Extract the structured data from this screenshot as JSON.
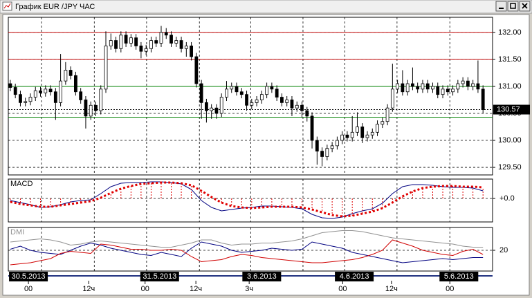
{
  "window": {
    "title": "График EUR /JPY ЧАС"
  },
  "chart_data": [
    {
      "type": "candlestick",
      "ohlc": [
        [
          131.05,
          131.12,
          130.91,
          130.98
        ],
        [
          130.98,
          131.05,
          130.78,
          130.85
        ],
        [
          130.85,
          130.92,
          130.63,
          130.7
        ],
        [
          130.7,
          130.79,
          130.63,
          130.72
        ],
        [
          130.72,
          130.87,
          130.65,
          130.8
        ],
        [
          130.8,
          130.99,
          130.73,
          130.92
        ],
        [
          130.92,
          130.99,
          130.81,
          130.88
        ],
        [
          130.88,
          131.02,
          130.81,
          130.95
        ],
        [
          130.95,
          131.02,
          130.83,
          130.9
        ],
        [
          130.9,
          130.97,
          130.38,
          130.7
        ],
        [
          130.7,
          131.6,
          130.63,
          131.1
        ],
        [
          131.1,
          131.45,
          131.03,
          131.3
        ],
        [
          131.3,
          131.37,
          131.13,
          131.2
        ],
        [
          131.2,
          131.27,
          130.83,
          130.9
        ],
        [
          130.9,
          130.97,
          130.68,
          130.75
        ],
        [
          130.75,
          130.82,
          130.22,
          130.45
        ],
        [
          130.45,
          130.72,
          130.38,
          130.65
        ],
        [
          130.65,
          130.72,
          130.45,
          130.55
        ],
        [
          130.55,
          131.02,
          130.48,
          130.95
        ],
        [
          130.95,
          132.02,
          130.88,
          131.75
        ],
        [
          131.75,
          131.98,
          131.68,
          131.85
        ],
        [
          131.85,
          131.92,
          131.63,
          131.7
        ],
        [
          131.7,
          132.02,
          131.63,
          131.95
        ],
        [
          131.95,
          132.02,
          131.73,
          131.8
        ],
        [
          131.8,
          131.97,
          131.73,
          131.9
        ],
        [
          131.9,
          131.97,
          131.68,
          131.75
        ],
        [
          131.75,
          131.82,
          131.52,
          131.65
        ],
        [
          131.65,
          131.77,
          131.58,
          131.7
        ],
        [
          131.7,
          131.92,
          131.63,
          131.85
        ],
        [
          131.85,
          131.92,
          131.73,
          131.8
        ],
        [
          131.8,
          132.12,
          131.73,
          132.0
        ],
        [
          132.0,
          132.08,
          131.88,
          131.95
        ],
        [
          131.95,
          132.02,
          131.73,
          131.8
        ],
        [
          131.8,
          131.92,
          131.73,
          131.85
        ],
        [
          131.85,
          131.92,
          131.63,
          131.7
        ],
        [
          131.7,
          131.82,
          131.55,
          131.75
        ],
        [
          131.75,
          131.82,
          131.48,
          131.55
        ],
        [
          131.55,
          131.62,
          130.98,
          131.05
        ],
        [
          131.05,
          131.12,
          130.4,
          130.7
        ],
        [
          130.7,
          130.77,
          130.33,
          130.55
        ],
        [
          130.55,
          130.67,
          130.4,
          130.6
        ],
        [
          130.6,
          130.67,
          130.4,
          130.5
        ],
        [
          130.5,
          130.87,
          130.43,
          130.8
        ],
        [
          130.8,
          131.1,
          130.73,
          130.95
        ],
        [
          130.95,
          131.07,
          130.88,
          131.0
        ],
        [
          131.0,
          131.07,
          130.83,
          130.9
        ],
        [
          130.9,
          130.97,
          130.78,
          130.85
        ],
        [
          130.85,
          130.92,
          130.55,
          130.65
        ],
        [
          130.65,
          130.77,
          130.58,
          130.7
        ],
        [
          130.7,
          130.82,
          130.63,
          130.75
        ],
        [
          130.75,
          130.92,
          130.68,
          130.85
        ],
        [
          130.85,
          131.07,
          130.78,
          131.0
        ],
        [
          131.0,
          131.07,
          130.88,
          130.95
        ],
        [
          130.95,
          131.02,
          130.73,
          130.8
        ],
        [
          130.8,
          130.87,
          130.63,
          130.7
        ],
        [
          130.7,
          130.82,
          130.63,
          130.75
        ],
        [
          130.75,
          130.82,
          130.45,
          130.6
        ],
        [
          130.6,
          130.72,
          130.53,
          130.65
        ],
        [
          130.65,
          130.72,
          130.42,
          130.55
        ],
        [
          130.55,
          130.62,
          130.35,
          130.45
        ],
        [
          130.45,
          130.52,
          129.85,
          130.0
        ],
        [
          130.0,
          130.07,
          129.55,
          129.8
        ],
        [
          129.8,
          129.87,
          129.52,
          129.7
        ],
        [
          129.7,
          129.92,
          129.63,
          129.85
        ],
        [
          129.85,
          129.97,
          129.78,
          129.9
        ],
        [
          129.9,
          130.07,
          129.83,
          130.0
        ],
        [
          130.0,
          130.17,
          129.93,
          130.1
        ],
        [
          130.1,
          130.17,
          129.98,
          130.05
        ],
        [
          130.05,
          130.45,
          129.98,
          130.15
        ],
        [
          130.15,
          130.52,
          130.08,
          130.25
        ],
        [
          130.25,
          130.32,
          129.95,
          130.05
        ],
        [
          130.05,
          130.17,
          129.98,
          130.1
        ],
        [
          130.1,
          130.22,
          130.03,
          130.15
        ],
        [
          130.15,
          130.37,
          130.08,
          130.3
        ],
        [
          130.3,
          130.42,
          130.23,
          130.35
        ],
        [
          130.35,
          130.67,
          130.28,
          130.6
        ],
        [
          130.6,
          131.42,
          130.53,
          130.95
        ],
        [
          130.95,
          131.12,
          130.88,
          131.05
        ],
        [
          131.05,
          131.3,
          130.83,
          130.9
        ],
        [
          130.9,
          131.12,
          130.83,
          131.05
        ],
        [
          131.05,
          131.35,
          130.93,
          131.0
        ],
        [
          131.0,
          131.07,
          130.88,
          130.95
        ],
        [
          130.95,
          131.12,
          130.88,
          131.05
        ],
        [
          131.05,
          131.12,
          130.88,
          130.95
        ],
        [
          130.95,
          131.07,
          130.88,
          131.0
        ],
        [
          131.0,
          131.07,
          130.78,
          130.85
        ],
        [
          130.85,
          131.02,
          130.78,
          130.95
        ],
        [
          130.95,
          131.02,
          130.83,
          130.9
        ],
        [
          130.9,
          131.02,
          130.83,
          130.95
        ],
        [
          130.95,
          131.12,
          130.88,
          131.05
        ],
        [
          131.05,
          131.17,
          130.98,
          131.1
        ],
        [
          131.1,
          131.17,
          130.93,
          131.0
        ],
        [
          131.0,
          131.12,
          130.93,
          131.05
        ],
        [
          131.05,
          131.48,
          130.88,
          130.95
        ],
        [
          130.95,
          131.02,
          130.5,
          130.57
        ]
      ],
      "up_color": "#ffffff",
      "down_color": "#000000",
      "xlim": [
        -0.4,
        95.9
      ],
      "ylim": [
        129.36,
        132.28
      ],
      "yticks": [
        {
          "value": 129.5,
          "label": "129.50"
        },
        {
          "value": 130,
          "label": "130.00"
        },
        {
          "value": 130.5,
          "label": "130.50"
        },
        {
          "value": 131,
          "label": "131.00"
        },
        {
          "value": 131.5,
          "label": "131.50"
        },
        {
          "value": 132,
          "label": "132.00"
        }
      ],
      "levels": [
        {
          "value": 132,
          "color": "#c00000"
        },
        {
          "value": 131.5,
          "color": "#c00000"
        },
        {
          "value": 131,
          "color": "#008000"
        },
        {
          "value": 130.43,
          "color": "#008000"
        }
      ],
      "last_price": 130.57,
      "xgrid": [
        6.2,
        16.7,
        27.1,
        37.6,
        47.8,
        58.2,
        66.5,
        76.9,
        87.4
      ],
      "xticks": [
        {
          "value": 3.6,
          "label": "00"
        },
        {
          "value": 15.6,
          "label": "12ч"
        },
        {
          "value": 26.8,
          "label": "00"
        },
        {
          "value": 36.9,
          "label": "12ч"
        },
        {
          "value": 47.5,
          "label": "3ч"
        },
        {
          "value": 66.1,
          "label": "00"
        },
        {
          "value": 75.8,
          "label": "12ч"
        },
        {
          "value": 87.4,
          "label": "00"
        }
      ],
      "date_labels": [
        {
          "value": 3.6,
          "label": "30.5.2013"
        },
        {
          "value": 29.7,
          "label": "31.5.2013"
        },
        {
          "value": 50,
          "label": "3.6.2013"
        },
        {
          "value": 68.4,
          "label": "4.6.2013"
        },
        {
          "value": 89.2,
          "label": "5.6.2013"
        }
      ]
    },
    {
      "type": "line",
      "title": "MACD",
      "x": [
        0,
        2,
        4,
        6,
        8,
        10,
        12,
        14,
        16,
        18,
        20,
        22,
        24,
        26,
        28,
        30,
        32,
        34,
        36,
        38,
        40,
        42,
        44,
        46,
        48,
        50,
        52,
        54,
        56,
        58,
        60,
        62,
        64,
        66,
        68,
        70,
        72,
        74,
        76,
        78,
        80,
        82,
        84,
        86,
        88,
        90,
        92,
        94
      ],
      "series": [
        {
          "color": "#000080",
          "values": [
            -0.03,
            -0.06,
            -0.09,
            -0.13,
            -0.12,
            -0.09,
            -0.05,
            -0.03,
            -0.02,
            0.07,
            0.17,
            0.22,
            0.23,
            0.23,
            0.24,
            0.24,
            0.23,
            0.21,
            0.13,
            -0.03,
            -0.13,
            -0.18,
            -0.16,
            -0.14,
            -0.13,
            -0.11,
            -0.11,
            -0.12,
            -0.13,
            -0.15,
            -0.23,
            -0.28,
            -0.29,
            -0.27,
            -0.22,
            -0.18,
            -0.15,
            -0.07,
            0.07,
            0.17,
            0.2,
            0.2,
            0.19,
            0.17,
            0.16,
            0.16,
            0.15,
            0.11
          ]
        },
        {
          "color": "#e00000",
          "style": "dotted",
          "hist": true,
          "values": [
            -0.05,
            -0.08,
            -0.1,
            -0.12,
            -0.12,
            -0.1,
            -0.08,
            -0.06,
            -0.04,
            0.01,
            0.08,
            0.14,
            0.18,
            0.21,
            0.22,
            0.23,
            0.23,
            0.22,
            0.19,
            0.11,
            0.02,
            -0.06,
            -0.11,
            -0.13,
            -0.14,
            -0.13,
            -0.12,
            -0.12,
            -0.12,
            -0.13,
            -0.16,
            -0.2,
            -0.24,
            -0.26,
            -0.25,
            -0.22,
            -0.19,
            -0.14,
            -0.06,
            0.03,
            0.1,
            0.15,
            0.17,
            0.18,
            0.18,
            0.17,
            0.17,
            0.16
          ]
        }
      ],
      "ylim": [
        -0.34,
        0.28
      ],
      "yticks": [
        {
          "value": 0,
          "label": "+0.0"
        }
      ]
    },
    {
      "type": "line",
      "title": "DMI",
      "x": [
        0,
        2,
        4,
        6,
        8,
        10,
        12,
        14,
        16,
        18,
        20,
        22,
        24,
        26,
        28,
        30,
        32,
        34,
        36,
        38,
        40,
        42,
        44,
        46,
        48,
        50,
        52,
        54,
        56,
        58,
        60,
        62,
        64,
        66,
        68,
        70,
        72,
        74,
        76,
        78,
        80,
        82,
        84,
        86,
        88,
        90,
        92,
        94
      ],
      "series": [
        {
          "color": "#909090",
          "values": [
            28,
            29,
            30,
            31,
            30,
            28,
            25,
            26,
            28,
            29,
            28,
            27,
            26,
            25,
            24,
            23,
            23,
            25,
            27,
            30,
            30,
            27,
            25,
            26,
            26,
            27,
            27,
            28,
            29,
            31,
            34,
            37,
            38,
            39,
            39,
            38,
            36,
            34,
            32,
            31,
            30,
            29,
            28,
            27,
            26,
            24,
            23,
            23
          ]
        },
        {
          "color": "#000080",
          "values": [
            21,
            24,
            20,
            18,
            17,
            16,
            20,
            24,
            27,
            25,
            22,
            20,
            18,
            16,
            15,
            18,
            16,
            14,
            22,
            28,
            26,
            24,
            20,
            18,
            19,
            20,
            22,
            21,
            20,
            21,
            28,
            26,
            24,
            22,
            18,
            16,
            14,
            12,
            10,
            8,
            9,
            10,
            11,
            12,
            11,
            12,
            13,
            13
          ]
        },
        {
          "color": "#d00000",
          "values": [
            6,
            7,
            8,
            10,
            12,
            17,
            19,
            18,
            17,
            26,
            25,
            23,
            21,
            21,
            20,
            20,
            21,
            20,
            14,
            9,
            10,
            11,
            14,
            16,
            15,
            13,
            12,
            11,
            10,
            9,
            8,
            8,
            9,
            10,
            11,
            13,
            16,
            20,
            30,
            27,
            24,
            20,
            18,
            16,
            15,
            19,
            21,
            16
          ]
        }
      ],
      "ylim": [
        0,
        42
      ],
      "yticks": [
        20
      ]
    }
  ]
}
